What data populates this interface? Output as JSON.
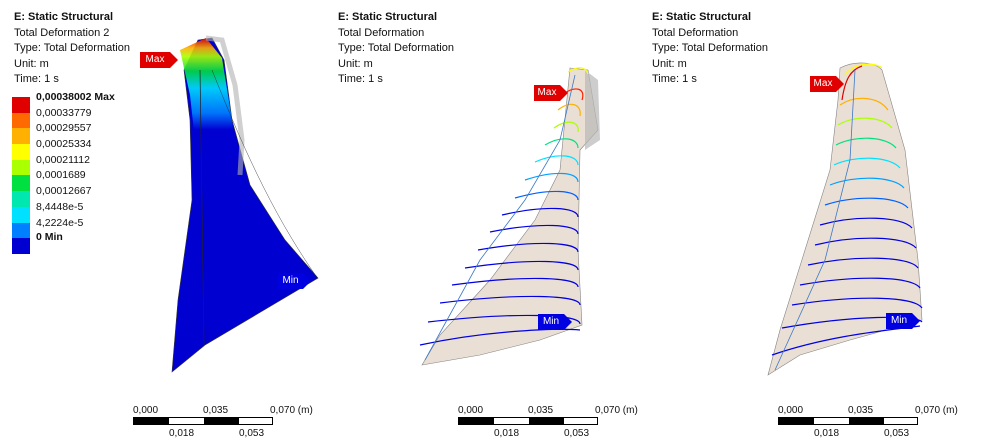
{
  "panels": [
    {
      "title": "E: Static Structural",
      "result": "Total Deformation 2",
      "type": "Type: Total Deformation",
      "unit": "Unit: m",
      "time": "Time: 1 s",
      "legend": {
        "entries": [
          "0,00038002 Max",
          "0,00033779",
          "0,00029557",
          "0,00025334",
          "0,00021112",
          "0,0001689",
          "0,00012667",
          "8,4448e-5",
          "4,2224e-5"
        ],
        "end_label": "0 Min",
        "colors": [
          "#e00000",
          "#ff6a00",
          "#ffb000",
          "#ffff00",
          "#aaff00",
          "#00e040",
          "#00e8b0",
          "#00e0ff",
          "#0080ff",
          "#0000d0"
        ]
      },
      "max_label": "Max",
      "min_label": "Min",
      "scale": {
        "ticks_top": [
          "0,000",
          "0,035",
          "0,070 (m)"
        ],
        "ticks_bottom": [
          "0,018",
          "0,053"
        ]
      }
    },
    {
      "title": "E: Static Structural",
      "result": "Total Deformation",
      "type": "Type: Total Deformation",
      "unit": "Unit: m",
      "time": "Time: 1 s",
      "max_label": "Max",
      "min_label": "Min",
      "scale": {
        "ticks_top": [
          "0,000",
          "0,035",
          "0,070 (m)"
        ],
        "ticks_bottom": [
          "0,018",
          "0,053"
        ]
      }
    },
    {
      "title": "E: Static Structural",
      "result": "Total Deformation",
      "type": "Type: Total Deformation",
      "unit": "Unit: m",
      "time": "Time: 1 s",
      "max_label": "Max",
      "min_label": "Min",
      "scale": {
        "ticks_top": [
          "0,000",
          "0,035",
          "0,070 (m)"
        ],
        "ticks_bottom": [
          "0,018",
          "0,053"
        ]
      }
    }
  ],
  "colors": {
    "max_tag": "#e00000",
    "min_tag": "#0000e0",
    "min_contour": "#0000d0"
  }
}
